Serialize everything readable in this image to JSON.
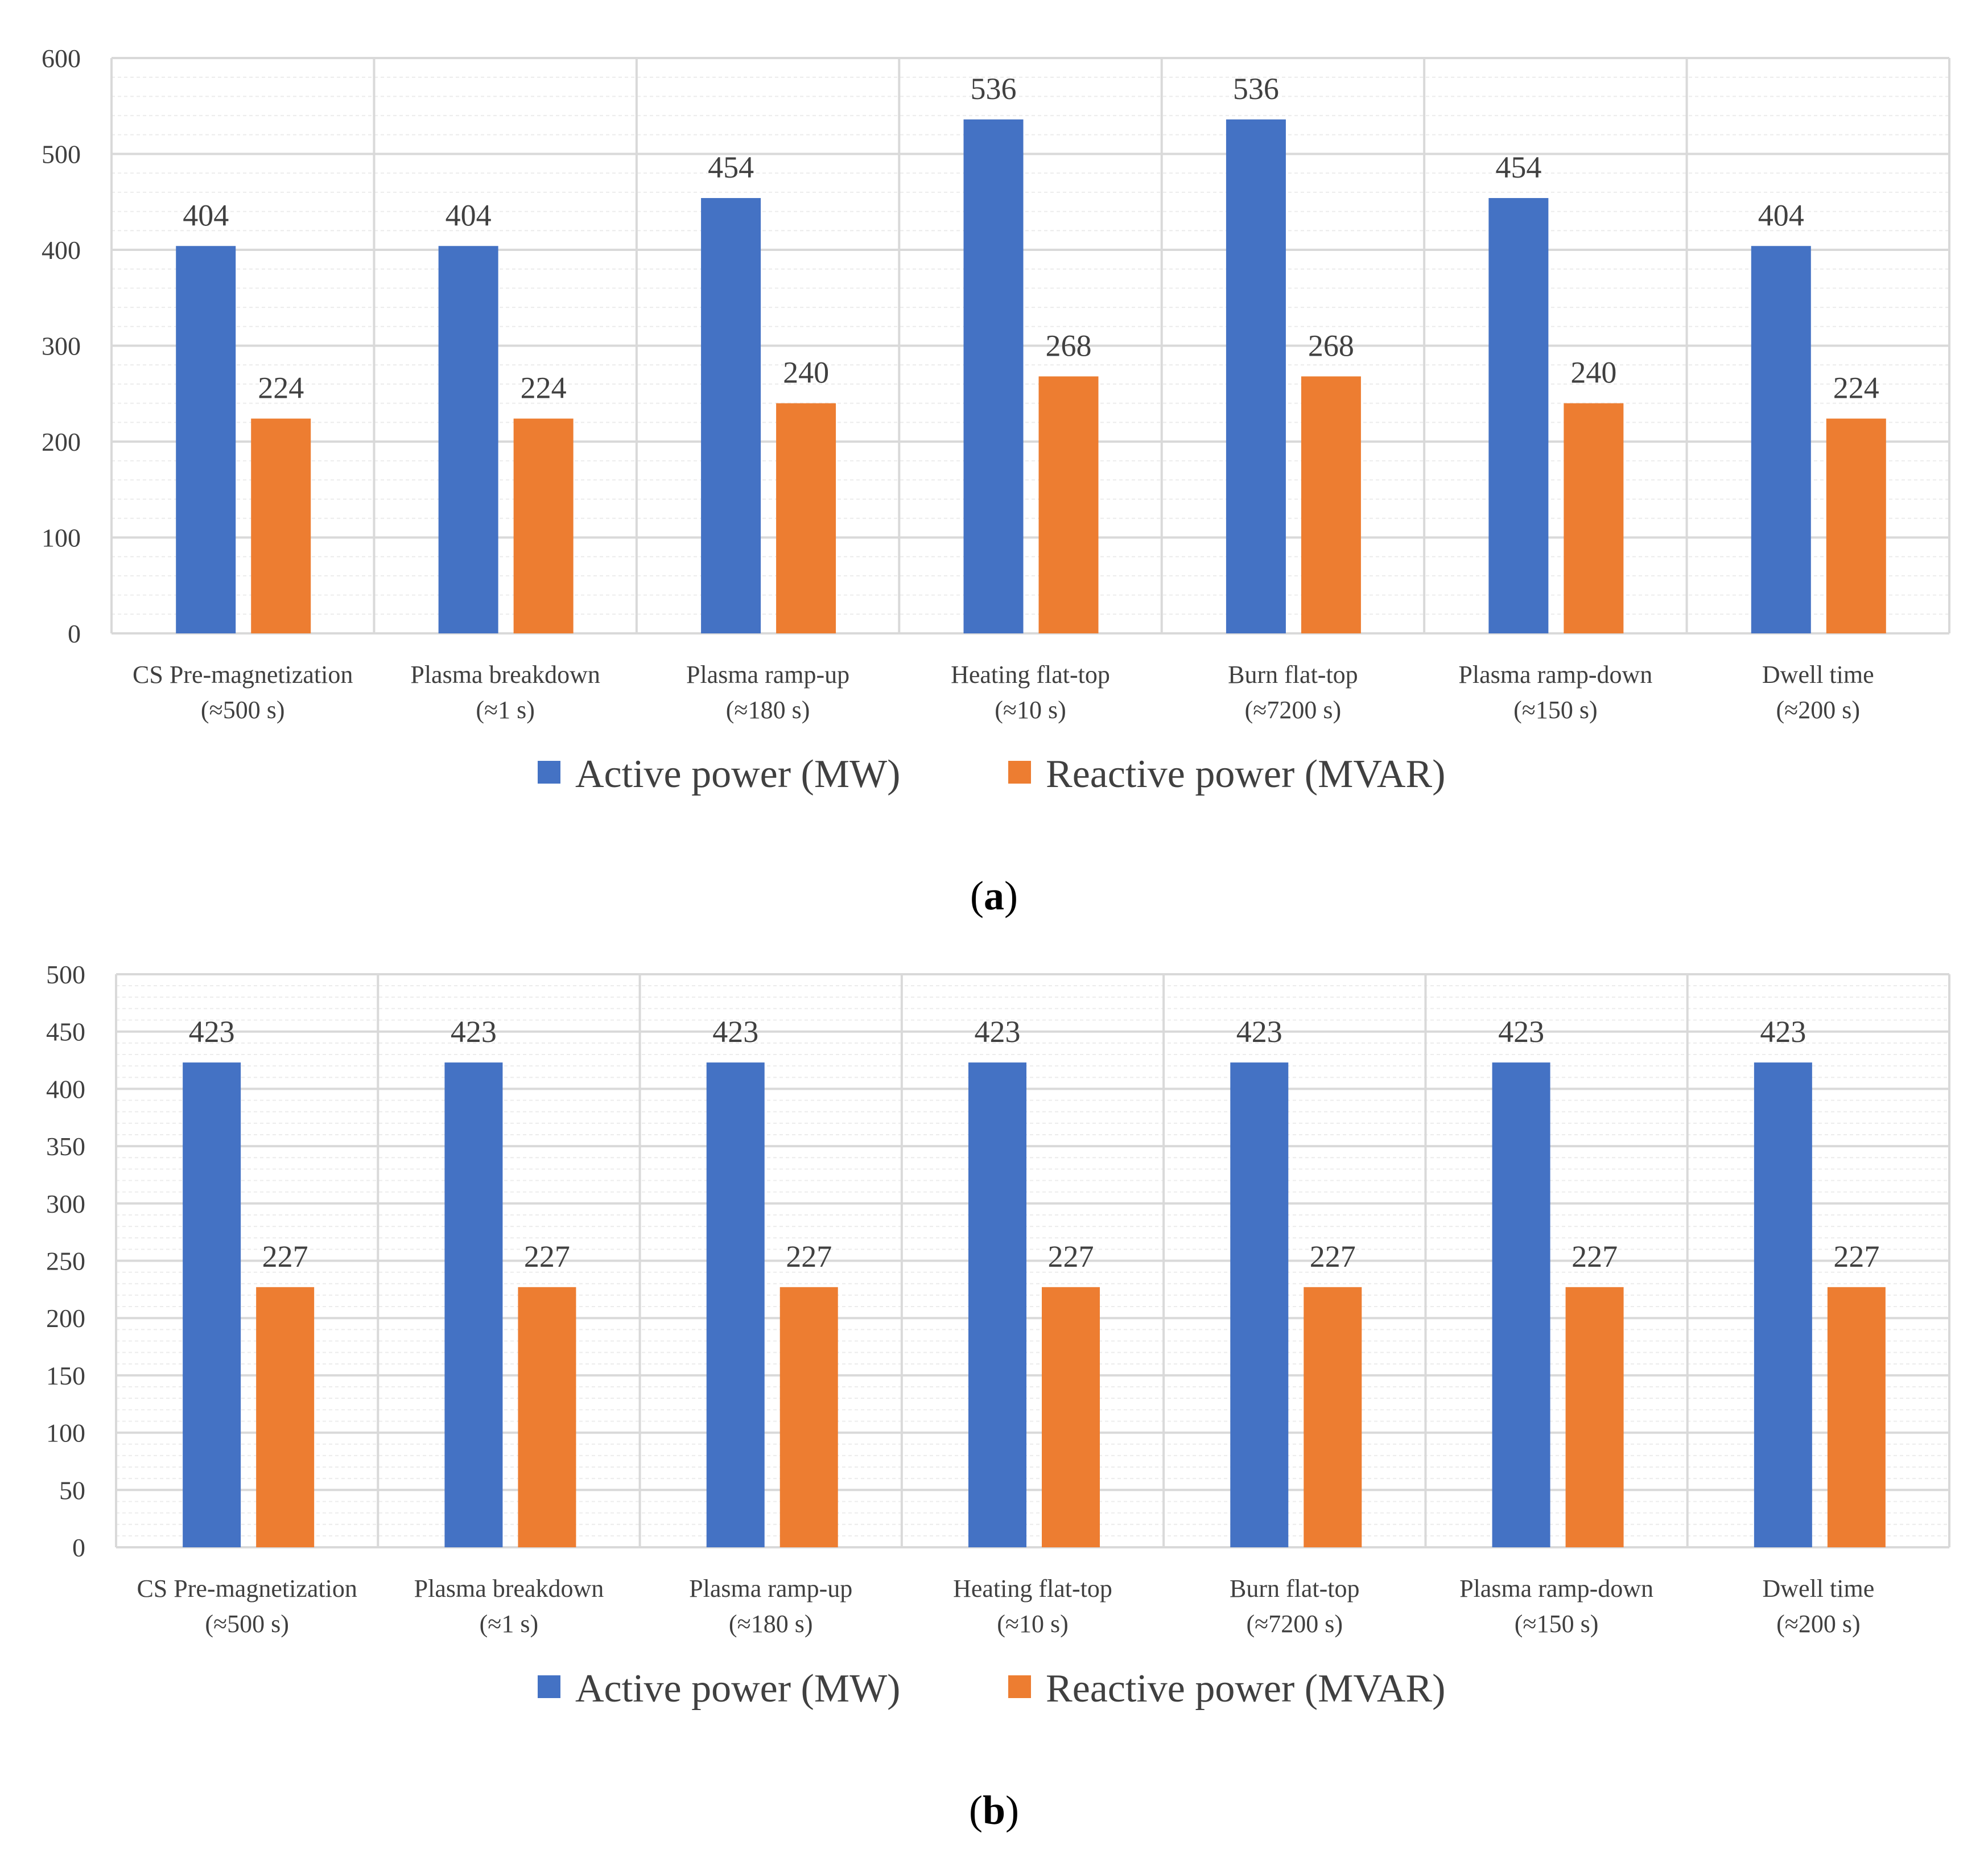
{
  "colors": {
    "active": "#4472C4",
    "reactive": "#ED7D31",
    "grid_major": "#D9D9D9",
    "grid_minor": "#ECECEC",
    "text": "#404040"
  },
  "chart_data": [
    {
      "type": "bar",
      "panel_label": "a",
      "categories": [
        [
          "CS Pre-magnetization",
          "(≈500 s)"
        ],
        [
          "Plasma breakdown",
          "(≈1 s)"
        ],
        [
          "Plasma ramp-up",
          "(≈180 s)"
        ],
        [
          "Heating  flat-top",
          "(≈10 s)"
        ],
        [
          "Burn flat-top",
          "(≈7200 s)"
        ],
        [
          "Plasma ramp-down",
          "(≈150 s)"
        ],
        [
          "Dwell  time",
          "(≈200 s)"
        ]
      ],
      "series": [
        {
          "name": "Active power (MW)",
          "values": [
            404,
            404,
            454,
            536,
            536,
            454,
            404
          ]
        },
        {
          "name": "Reactive power (MVAR)",
          "values": [
            224,
            224,
            240,
            268,
            268,
            240,
            224
          ]
        }
      ],
      "ylim": [
        0,
        600
      ],
      "ytick_step": 100,
      "minor_step": 20,
      "yticks": [
        "0",
        "100",
        "200",
        "300",
        "400",
        "500",
        "600"
      ],
      "legend_position": "bottom",
      "grid": true
    },
    {
      "type": "bar",
      "panel_label": "b",
      "categories": [
        [
          "CS Pre-magnetization",
          "(≈500 s)"
        ],
        [
          "Plasma breakdown",
          "(≈1 s)"
        ],
        [
          "Plasma ramp-up",
          "(≈180 s)"
        ],
        [
          "Heating  flat-top",
          "(≈10 s)"
        ],
        [
          "Burn flat-top",
          "(≈7200 s)"
        ],
        [
          "Plasma ramp-down",
          "(≈150 s)"
        ],
        [
          "Dwell  time",
          "(≈200 s)"
        ]
      ],
      "series": [
        {
          "name": "Active power (MW)",
          "values": [
            423,
            423,
            423,
            423,
            423,
            423,
            423
          ]
        },
        {
          "name": "Reactive power (MVAR)",
          "values": [
            227,
            227,
            227,
            227,
            227,
            227,
            227
          ]
        }
      ],
      "ylim": [
        0,
        500
      ],
      "ytick_step": 50,
      "minor_step": 10,
      "yticks": [
        "0",
        "50",
        "100",
        "150",
        "200",
        "250",
        "300",
        "350",
        "400",
        "450",
        "500"
      ],
      "legend_position": "bottom",
      "grid": true
    }
  ]
}
